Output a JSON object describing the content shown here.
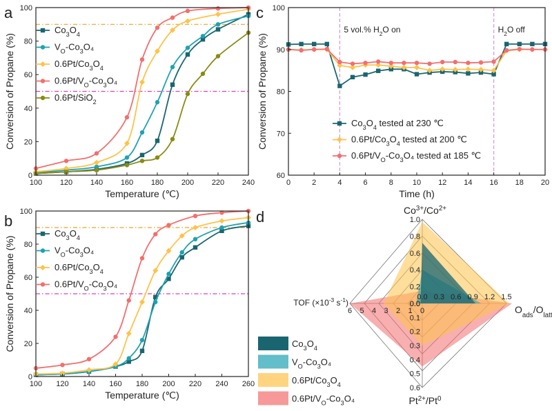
{
  "colors": {
    "co3o4": "#1a6670",
    "vo": "#1fa2b0",
    "pt": "#ffc24a",
    "ptvo": "#f36e6e",
    "sio2": "#8a8a14",
    "orange_ref": "#f0a020",
    "magenta_ref": "#dd3fc0",
    "dashed_time": "#d69ae6"
  },
  "chart_data": [
    {
      "id": "a",
      "panel_label": "a",
      "type": "line",
      "xlabel": "Temperature (℃)",
      "ylabel": "Conversion of Propane (%)",
      "xlim": [
        100,
        240
      ],
      "ylim": [
        0,
        100
      ],
      "xticks": [
        "100",
        "120",
        "140",
        "160",
        "180",
        "200",
        "220",
        "240"
      ],
      "yticks": [
        "0",
        "20",
        "40",
        "60",
        "80",
        "100"
      ],
      "reference_lines": [
        90,
        50
      ],
      "series": [
        {
          "name_main": "Co",
          "name_sub1": "3",
          "name_mid": "O",
          "name_sub2": "4",
          "name_tail": "",
          "color": "#1a6670",
          "marker": "square",
          "x": [
            100,
            120,
            140,
            160,
            170,
            180,
            190,
            200,
            210,
            220,
            240
          ],
          "y": [
            1,
            2,
            3.5,
            7,
            12,
            20.5,
            54,
            72,
            81,
            87,
            96
          ]
        },
        {
          "name_main": "V",
          "name_sub1": "O",
          "name_mid": "-Co",
          "name_sub2": "3",
          "name_tail": "O₄",
          "color": "#1fa2b0",
          "marker": "circle",
          "x": [
            100,
            120,
            140,
            160,
            170,
            180,
            190,
            200,
            210,
            220,
            240
          ],
          "y": [
            1.5,
            3,
            5,
            10.5,
            25.5,
            43.5,
            64.5,
            76,
            83,
            90,
            95
          ]
        },
        {
          "name_main": "0.6Pt/Co",
          "name_sub1": "3",
          "name_mid": "O",
          "name_sub2": "4",
          "name_tail": "",
          "color": "#ffc24a",
          "marker": "diamond",
          "x": [
            100,
            120,
            140,
            160,
            170,
            180,
            190,
            200,
            220,
            240
          ],
          "y": [
            2,
            4,
            7.5,
            19,
            55.5,
            74,
            86.5,
            92,
            96,
            99
          ]
        },
        {
          "name_main": "0.6Pt/V",
          "name_sub1": "O",
          "name_mid": "-Co",
          "name_sub2": "3",
          "name_tail": "O₄",
          "color": "#f36e6e",
          "marker": "circle",
          "x": [
            100,
            120,
            140,
            160,
            170,
            180,
            190,
            200,
            220,
            240
          ],
          "y": [
            4,
            8.5,
            13,
            34.5,
            69,
            88,
            94,
            98,
            99.5,
            100
          ]
        },
        {
          "name_main": "0.6Pt/SiO",
          "name_sub1": "2",
          "name_mid": "",
          "name_sub2": "",
          "name_tail": "",
          "color": "#8a8a14",
          "marker": "circle",
          "x": [
            100,
            120,
            140,
            160,
            170,
            180,
            190,
            200,
            210,
            220,
            240
          ],
          "y": [
            1,
            2,
            3,
            6,
            8.5,
            10.5,
            21.5,
            48.5,
            60.5,
            71,
            85
          ]
        }
      ]
    },
    {
      "id": "b",
      "panel_label": "b",
      "type": "line",
      "xlabel": "Temperature (℃)",
      "ylabel": "Conversion of Propane (%)",
      "xlim": [
        100,
        260
      ],
      "ylim": [
        0,
        100
      ],
      "xticks": [
        "100",
        "120",
        "140",
        "160",
        "180",
        "200",
        "220",
        "240",
        "260"
      ],
      "yticks": [
        "0",
        "20",
        "40",
        "60",
        "80",
        "100"
      ],
      "reference_lines": [
        90,
        50
      ],
      "series": [
        {
          "name_main": "Co",
          "name_sub1": "3",
          "name_mid": "O",
          "name_sub2": "4",
          "name_tail": "",
          "color": "#1a6670",
          "marker": "square",
          "x": [
            100,
            120,
            140,
            160,
            170,
            180,
            190,
            200,
            210,
            220,
            240,
            260
          ],
          "y": [
            1,
            1.5,
            3,
            6,
            9,
            15.5,
            48,
            59,
            72,
            78,
            88,
            91
          ]
        },
        {
          "name_main": "V",
          "name_sub1": "O",
          "name_mid": "-Co",
          "name_sub2": "3",
          "name_tail": "O₄",
          "color": "#1fa2b0",
          "marker": "circle",
          "x": [
            100,
            120,
            140,
            160,
            170,
            180,
            190,
            200,
            210,
            220,
            240,
            260
          ],
          "y": [
            1,
            1.5,
            3,
            6,
            11,
            22,
            45,
            62,
            75,
            83,
            90,
            93
          ]
        },
        {
          "name_main": "0.6Pt/Co",
          "name_sub1": "3",
          "name_mid": "O",
          "name_sub2": "4",
          "name_tail": "",
          "color": "#ffc24a",
          "marker": "diamond",
          "x": [
            100,
            120,
            140,
            160,
            170,
            180,
            190,
            200,
            210,
            220,
            240,
            260
          ],
          "y": [
            1.5,
            2,
            4,
            7.5,
            26,
            45,
            64,
            76,
            85,
            90,
            94,
            96
          ]
        },
        {
          "name_main": "0.6Pt/V",
          "name_sub1": "O",
          "name_mid": "-Co",
          "name_sub2": "3",
          "name_tail": "O₄",
          "color": "#f36e6e",
          "marker": "circle",
          "x": [
            100,
            120,
            140,
            160,
            170,
            180,
            190,
            200,
            220,
            240,
            260
          ],
          "y": [
            5,
            7,
            10.5,
            24,
            46,
            71.5,
            86,
            91.5,
            97,
            99,
            100
          ]
        }
      ]
    },
    {
      "id": "c",
      "panel_label": "c",
      "type": "line",
      "xlabel": "Time (h)",
      "ylabel": "Conversion of Propane (%)",
      "xlim": [
        0,
        20
      ],
      "ylim": [
        60,
        100
      ],
      "xticks": [
        "0",
        "2",
        "4",
        "6",
        "8",
        "10",
        "12",
        "14",
        "16",
        "18",
        "20"
      ],
      "yticks": [
        "60",
        "70",
        "80",
        "90",
        "100"
      ],
      "events": [
        {
          "x": 4,
          "label_pre": "5 vol.% H",
          "label_sub": "2",
          "label_post": "O on"
        },
        {
          "x": 16,
          "label_pre": "H",
          "label_sub": "2",
          "label_post": "O off"
        }
      ],
      "series": [
        {
          "name_main": "Co",
          "name_sub1": "3",
          "name_mid": "O",
          "name_sub2": "4",
          "name_tail": " tested at 230 ℃",
          "color": "#1a6670",
          "marker": "square",
          "x": [
            0,
            1,
            2,
            3,
            4,
            5,
            6,
            7,
            8,
            9,
            10,
            11,
            12,
            13,
            14,
            15,
            16,
            17,
            18,
            19,
            20
          ],
          "y": [
            91.2,
            91.3,
            91.3,
            91.3,
            81.3,
            83.4,
            84,
            84.9,
            85.3,
            85.3,
            84.1,
            84.5,
            84.7,
            84.6,
            84.3,
            84.5,
            84.1,
            91.3,
            91.3,
            91.3,
            91.3
          ]
        },
        {
          "name_main": "0.6Pt/Co",
          "name_sub1": "3",
          "name_mid": "O",
          "name_sub2": "4",
          "name_tail": " tested at 200 ℃",
          "color": "#ffc24a",
          "marker": "diamond",
          "x": [
            0,
            1,
            2,
            3,
            4,
            5,
            6,
            7,
            8,
            9,
            10,
            11,
            12,
            13,
            14,
            15,
            16,
            17,
            18,
            19,
            20
          ],
          "y": [
            90,
            89.9,
            90,
            90,
            86.2,
            85.7,
            86.3,
            86.3,
            86,
            85.7,
            85.7,
            85,
            85.3,
            85.2,
            85.3,
            85.2,
            85,
            89.7,
            90,
            90,
            90
          ]
        },
        {
          "name_main": "0.6Pt/V",
          "name_sub1": "O",
          "name_mid": "-Co",
          "name_sub2": "3",
          "name_tail": "O₄ tested at 185 ℃",
          "color": "#f36e6e",
          "marker": "circle",
          "x": [
            0,
            1,
            2,
            3,
            4,
            5,
            6,
            7,
            8,
            9,
            10,
            11,
            12,
            13,
            14,
            15,
            16,
            17,
            18,
            19,
            20
          ],
          "y": [
            90,
            89.8,
            90,
            90.1,
            87,
            86.6,
            86.8,
            87.1,
            86.8,
            86.8,
            86.8,
            86.6,
            87,
            87,
            86.8,
            86.9,
            87.1,
            89.8,
            90.1,
            90,
            90
          ]
        }
      ]
    },
    {
      "id": "d",
      "panel_label": "d",
      "type": "radar",
      "axes": [
        {
          "name": "top",
          "title_main": "Co",
          "title_sup1": "3+",
          "title_mid": "/Co",
          "title_sup2": "2+",
          "max": 1.0,
          "ticks": [
            "0.0",
            "0.2",
            "0.4",
            "0.6",
            "0.8",
            "1.0"
          ]
        },
        {
          "name": "right",
          "title_main": "O",
          "title_sub1": "ads",
          "title_mid": "/O",
          "title_sub2": "latt",
          "max": 1.5,
          "ticks": [
            "0.0",
            "0.3",
            "0.6",
            "0.9",
            "1.2",
            "1.5"
          ]
        },
        {
          "name": "bottom",
          "title_main": "Pt",
          "title_sup1": "2+",
          "title_mid": "/Pt",
          "title_sup2": "0",
          "max": 0.6,
          "ticks": [
            "0.0",
            "0.1",
            "0.2",
            "0.3",
            "0.4",
            "0.5",
            "0.6"
          ]
        },
        {
          "name": "left",
          "title_main": "TOF (×10",
          "title_sup1": "-3",
          "title_mid": " s",
          "title_sup2": "-1",
          "title_tail": ")",
          "max": 6,
          "ticks": [
            "0",
            "1",
            "2",
            "3",
            "4",
            "5",
            "6"
          ]
        }
      ],
      "series": [
        {
          "name_main": "Co",
          "name_sub1": "3",
          "name_mid": "O",
          "name_sub2": "4",
          "name_tail": "",
          "color": "#1a6670",
          "values": [
            0.72,
            0.95,
            0.0,
            0.15
          ]
        },
        {
          "name_main": "V",
          "name_sub1": "O",
          "name_mid": "-Co",
          "name_sub2": "3",
          "name_tail": "O₄",
          "color": "#1fa2b0",
          "values": [
            0.4,
            1.05,
            0.0,
            0.5
          ]
        },
        {
          "name_main": "0.6Pt/Co",
          "name_sub1": "3",
          "name_mid": "O",
          "name_sub2": "4",
          "name_tail": "",
          "color": "#ffc24a",
          "values": [
            0.97,
            1.55,
            0.3,
            3.2
          ]
        },
        {
          "name_main": "0.6Pt/V",
          "name_sub1": "O",
          "name_mid": "-Co",
          "name_sub2": "3",
          "name_tail": "O₄",
          "color": "#f36e6e",
          "values": [
            0.15,
            1.6,
            0.45,
            6.0
          ]
        }
      ]
    }
  ]
}
